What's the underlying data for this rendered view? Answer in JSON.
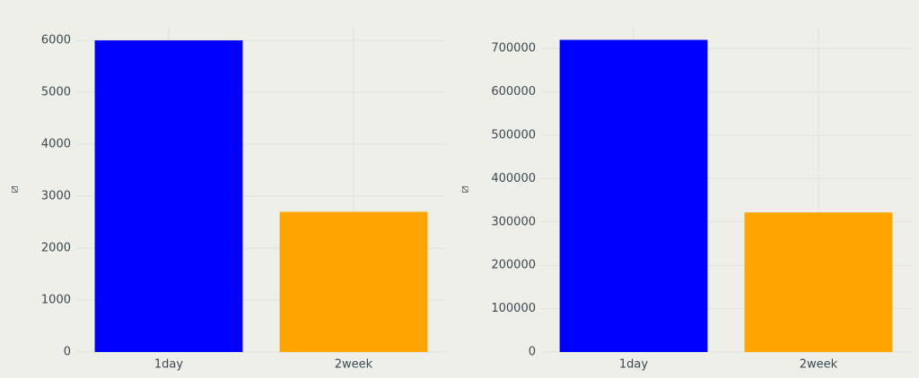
{
  "chart_data": [
    {
      "type": "bar",
      "y_label": "⧄",
      "categories": [
        "1day",
        "2week"
      ],
      "values": [
        6000,
        2700
      ],
      "colors": [
        "#0000ff",
        "#ffa500"
      ],
      "ylim": [
        0,
        6260
      ],
      "yticks": [
        0,
        1000,
        2000,
        3000,
        4000,
        5000,
        6000
      ],
      "grid": true
    },
    {
      "type": "bar",
      "y_label": "⧄",
      "categories": [
        "1day",
        "2week"
      ],
      "values": [
        720000,
        322000
      ],
      "colors": [
        "#0000ff",
        "#ffa500"
      ],
      "ylim": [
        0,
        750000
      ],
      "yticks": [
        0,
        100000,
        200000,
        300000,
        400000,
        500000,
        600000,
        700000
      ],
      "grid": true
    }
  ]
}
